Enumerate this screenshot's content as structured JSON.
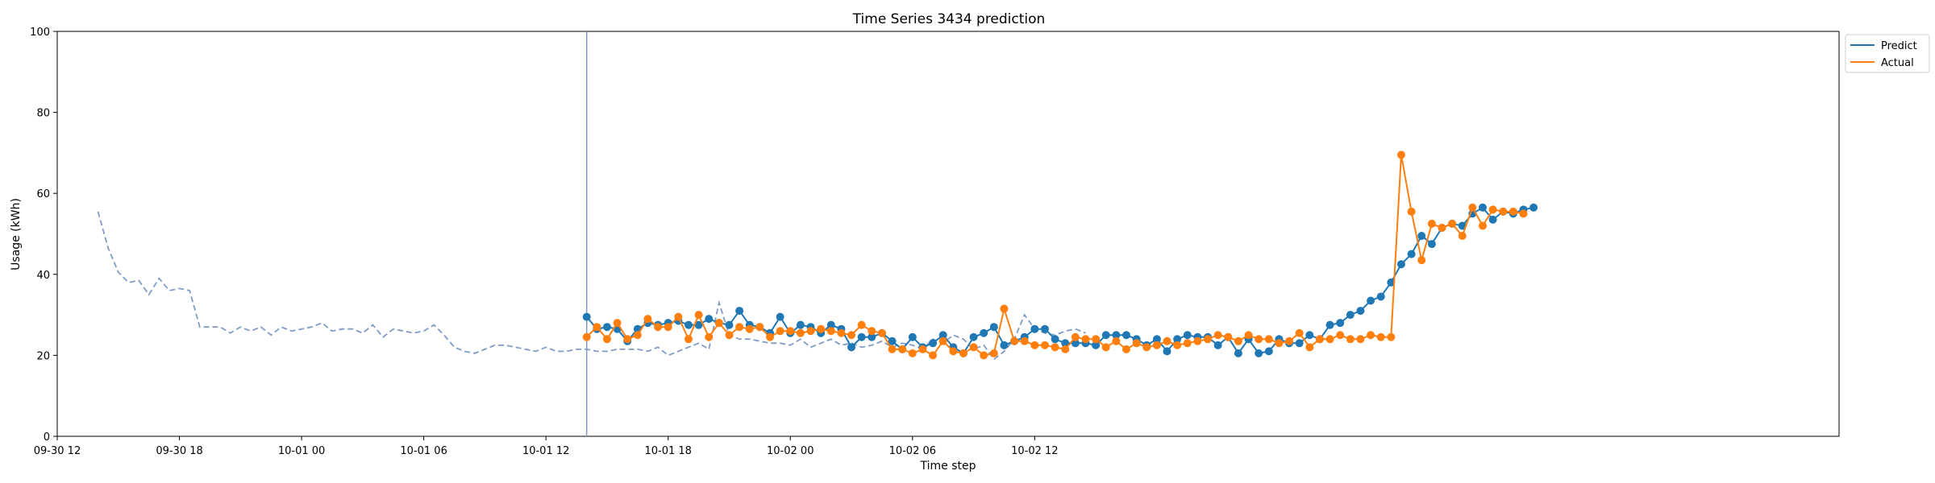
{
  "chart_data": {
    "type": "line",
    "title": "Time Series 3434 prediction",
    "xlabel": "Time step",
    "ylabel": "Usage (kWh)",
    "ylim": [
      0,
      100
    ],
    "yticks": [
      0,
      20,
      40,
      60,
      80,
      100
    ],
    "x_start": "2015-09-30 14:00",
    "step_minutes": 30,
    "xlim_steps": [
      -4,
      171
    ],
    "xticks": [
      {
        "label": "09-30 12",
        "step": -4
      },
      {
        "label": "09-30 18",
        "step": 8
      },
      {
        "label": "10-01 00",
        "step": 20
      },
      {
        "label": "10-01 06",
        "step": 32
      },
      {
        "label": "10-01 12",
        "step": 44
      },
      {
        "label": "10-01 18",
        "step": 56
      },
      {
        "label": "10-02 00",
        "step": 68
      },
      {
        "label": "10-02 06",
        "step": 80
      },
      {
        "label": "10-02 12",
        "step": 92
      }
    ],
    "forecast_start_step": 48,
    "legend_position": "top-right outside",
    "history": {
      "style": "dashed",
      "color": "#7e9cc6",
      "values": [
        55.5,
        46.5,
        40.5,
        38,
        38.5,
        35,
        39,
        36,
        36.5,
        36,
        27,
        27,
        27,
        25.5,
        27,
        26,
        27,
        25,
        27,
        26,
        26.5,
        27,
        28,
        26,
        26.5,
        26.5,
        25.5,
        27.5,
        24.5,
        26.5,
        26,
        25.5,
        26,
        27.5,
        25,
        22,
        21,
        20.5,
        21.5,
        22.5,
        22.5,
        22,
        21.5,
        21,
        22,
        21,
        21,
        21.5,
        21.5,
        21,
        21,
        21.5,
        21.5,
        21.5,
        21,
        22,
        20,
        21,
        22,
        23,
        21.5,
        33,
        25,
        24,
        24,
        23.5,
        23,
        23,
        22.5,
        24,
        22,
        23,
        24,
        22.5,
        23,
        22,
        22.5,
        23.5,
        22,
        23,
        22.5,
        21.5,
        24,
        23,
        25,
        24,
        21.5,
        22.5,
        19,
        21,
        24,
        30,
        26.5,
        25.5,
        25,
        26,
        26.5,
        25.5
      ]
    },
    "series": [
      {
        "name": "Predict",
        "color": "#1f77b4",
        "values": [
          29.5,
          26.5,
          27,
          26.5,
          23.5,
          26.5,
          28,
          27.5,
          28,
          28.5,
          27.5,
          27.5,
          29,
          28,
          27.5,
          31,
          27.5,
          27,
          25.5,
          29.5,
          25.5,
          27.5,
          27,
          25.5,
          27.5,
          26.5,
          22,
          24.5,
          24.5,
          25.5,
          23.5,
          21.5,
          24.5,
          22,
          23,
          25,
          22,
          20.5,
          24.5,
          25.5,
          27,
          22.5,
          23.5,
          24.5,
          26.5,
          26.5,
          24,
          23,
          23,
          23,
          22.5,
          25,
          25,
          25,
          24,
          22.5,
          24,
          21,
          24,
          25,
          24.5,
          24.5,
          22.5,
          24.5,
          20.5,
          24,
          20.5,
          21,
          24,
          23,
          23,
          25,
          24,
          27.5,
          28,
          30,
          31,
          33.5,
          34.5,
          38,
          42.5,
          45,
          49.5,
          47.5,
          51.5,
          52.5,
          52,
          55,
          56.5,
          53.5,
          55.5,
          55,
          56,
          56.5
        ]
      },
      {
        "name": "Actual",
        "color": "#ff7f0e",
        "values": [
          24.5,
          27,
          24,
          28,
          24,
          25,
          29,
          27,
          27,
          29.5,
          24,
          30,
          24.5,
          28,
          25,
          27,
          26.5,
          27,
          24.5,
          26,
          26,
          25.5,
          26,
          26.5,
          26,
          25.5,
          25,
          27.5,
          26,
          25.5,
          21.5,
          21.5,
          20.5,
          21.5,
          20,
          23.5,
          21,
          20.5,
          22,
          20,
          20.5,
          31.5,
          23.5,
          23.5,
          22.5,
          22.5,
          22,
          21.5,
          24.5,
          24,
          24,
          22,
          23.5,
          21.5,
          23,
          22,
          22.5,
          23.5,
          22.5,
          23,
          23.5,
          24,
          25,
          24.5,
          23.5,
          25,
          24,
          24,
          23,
          23.5,
          25.5,
          22,
          24,
          24,
          25,
          24,
          24,
          25,
          24.5,
          24.5,
          69.5,
          55.5,
          43.5,
          52.5,
          51.5,
          52.5,
          49.5,
          56.5,
          52,
          56,
          55.5,
          55.5,
          55
        ]
      }
    ]
  }
}
